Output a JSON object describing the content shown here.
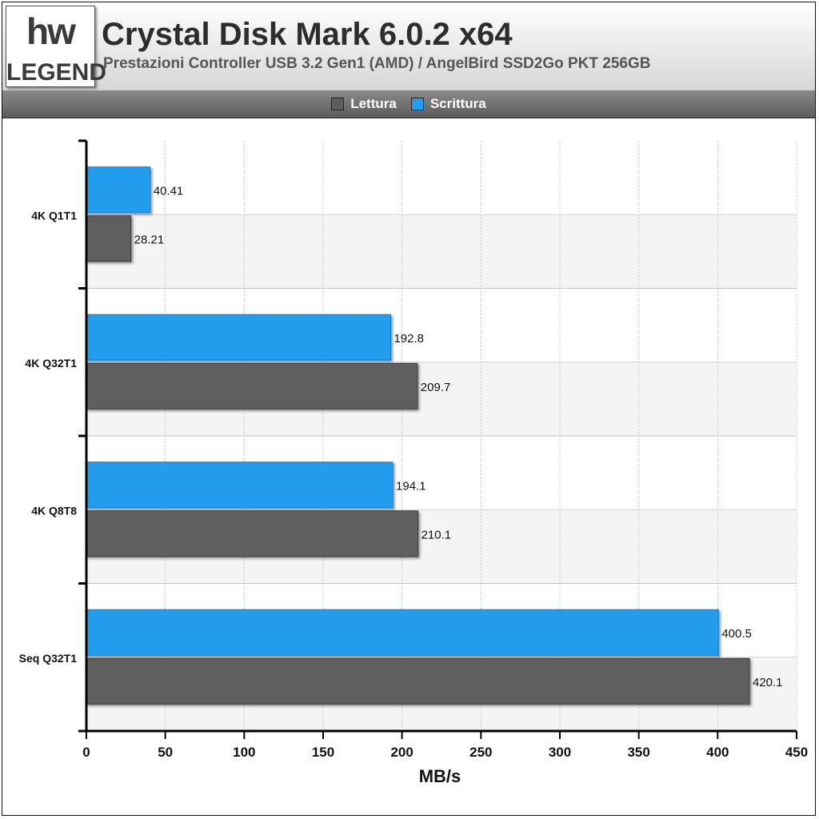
{
  "header": {
    "logo_top": "hw",
    "logo_bottom": "LEGEND",
    "title": "Crystal Disk Mark 6.0.2 x64",
    "subtitle": "Prestazioni Controller USB 3.2 Gen1 (AMD) / AngelBird SSD2Go PKT 256GB"
  },
  "legend": [
    {
      "label": "Lettura",
      "color": "#5e5e5e"
    },
    {
      "label": "Scrittura",
      "color": "#229ced"
    }
  ],
  "chart_data": {
    "type": "bar",
    "orientation": "horizontal",
    "categories": [
      "4K Q1T1",
      "4K Q32T1",
      "4K Q8T8",
      "Seq Q32T1"
    ],
    "series": [
      {
        "name": "Scrittura",
        "color": "#229ced",
        "values": [
          40.41,
          192.8,
          194.1,
          400.5
        ],
        "labels": [
          "40.41",
          "192.8",
          "194.1",
          "400.5"
        ]
      },
      {
        "name": "Lettura",
        "color": "#5e5e5e",
        "values": [
          28.21,
          209.7,
          210.1,
          420.1
        ],
        "labels": [
          "28.21",
          "209.7",
          "210.1",
          "420.1"
        ]
      }
    ],
    "xlabel": "MB/s",
    "ylabel": "",
    "xlim": [
      0,
      450
    ],
    "xticks": [
      0,
      50,
      100,
      150,
      200,
      250,
      300,
      350,
      400,
      450
    ],
    "grid": true,
    "legend_position": "top-center"
  }
}
